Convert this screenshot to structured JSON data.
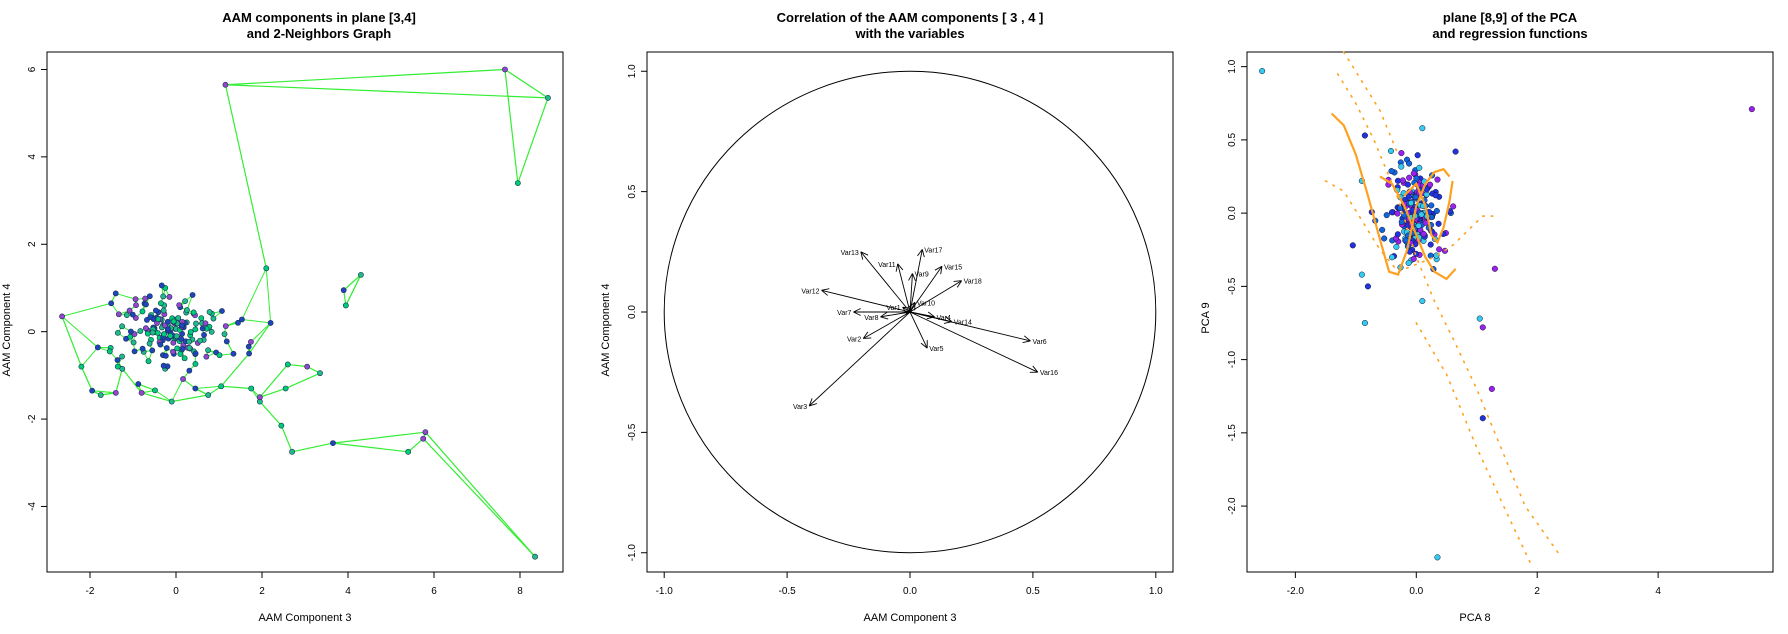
{
  "chart_data": [
    {
      "type": "scatter",
      "title_lines": [
        "AAM components in plane [3,4]",
        "and 2-Neighbors Graph"
      ],
      "xlabel": "AAM Component 3",
      "ylabel": "AAM Component 4",
      "xlim": [
        -3.0,
        9.0
      ],
      "ylim": [
        -5.5,
        6.4
      ],
      "xticks": [
        -2,
        0,
        2,
        4,
        6,
        8
      ],
      "yticks": [
        -4,
        -2,
        0,
        2,
        4,
        6
      ],
      "edge_color": "#33ee33",
      "point_colors": [
        "#00cc77",
        "#2244bb",
        "#9944cc",
        "#22bb88"
      ],
      "outliers": [
        [
          1.15,
          5.65
        ],
        [
          7.65,
          6.0
        ],
        [
          8.65,
          5.35
        ],
        [
          7.95,
          3.4
        ],
        [
          4.3,
          1.3
        ],
        [
          3.9,
          0.95
        ],
        [
          3.95,
          0.6
        ],
        [
          2.1,
          1.45
        ],
        [
          8.35,
          -5.15
        ],
        [
          5.8,
          -2.3
        ],
        [
          5.75,
          -2.45
        ],
        [
          5.4,
          -2.75
        ],
        [
          3.65,
          -2.55
        ],
        [
          2.7,
          -2.75
        ],
        [
          2.45,
          -2.15
        ],
        [
          1.95,
          -1.6
        ],
        [
          1.95,
          -1.5
        ],
        [
          2.6,
          -0.75
        ],
        [
          3.05,
          -0.8
        ],
        [
          3.35,
          -0.95
        ],
        [
          2.55,
          -1.3
        ],
        [
          -2.65,
          0.35
        ],
        [
          -2.2,
          -0.8
        ],
        [
          -1.95,
          -1.35
        ],
        [
          -1.75,
          -1.45
        ],
        [
          -1.4,
          -1.4
        ],
        [
          -1.25,
          -0.85
        ],
        [
          -0.8,
          -1.4
        ],
        [
          -0.1,
          -1.6
        ],
        [
          0.75,
          -1.45
        ],
        [
          0.45,
          -1.3
        ],
        [
          1.75,
          -1.3
        ],
        [
          1.05,
          -1.25
        ],
        [
          1.7,
          -0.5
        ],
        [
          2.2,
          0.2
        ]
      ],
      "edges": [
        [
          0,
          1
        ],
        [
          0,
          2
        ],
        [
          1,
          2
        ],
        [
          1,
          3
        ],
        [
          2,
          3
        ],
        [
          4,
          5
        ],
        [
          4,
          6
        ],
        [
          5,
          6
        ],
        [
          7,
          0
        ],
        [
          8,
          9
        ],
        [
          8,
          10
        ],
        [
          9,
          10
        ],
        [
          10,
          11
        ],
        [
          9,
          12
        ],
        [
          11,
          12
        ],
        [
          12,
          13
        ],
        [
          13,
          14
        ],
        [
          14,
          15
        ],
        [
          15,
          16
        ],
        [
          16,
          17
        ],
        [
          17,
          18
        ],
        [
          18,
          19
        ],
        [
          19,
          20
        ],
        [
          20,
          16
        ],
        [
          21,
          22
        ],
        [
          22,
          23
        ],
        [
          23,
          24
        ],
        [
          24,
          25
        ],
        [
          25,
          26
        ],
        [
          26,
          27
        ],
        [
          27,
          28
        ],
        [
          28,
          29
        ],
        [
          29,
          30
        ],
        [
          31,
          32
        ],
        [
          32,
          33
        ],
        [
          33,
          34
        ]
      ],
      "cluster": {
        "center": [
          -0.1,
          0.05
        ],
        "spread": [
          0.65,
          0.45
        ],
        "count": 180
      }
    },
    {
      "type": "correlation_circle",
      "title_lines": [
        "Correlation of the AAM components [ 3 , 4 ]",
        "with the variables"
      ],
      "xlabel": "AAM Component 3",
      "ylabel": "AAM Component 4",
      "xlim": [
        -1.07,
        1.07
      ],
      "ylim": [
        -1.08,
        1.08
      ],
      "xticks": [
        -1.0,
        -0.5,
        0.0,
        0.5,
        1.0
      ],
      "yticks": [
        -1.0,
        -0.5,
        0.0,
        0.5,
        1.0
      ],
      "arrows": [
        {
          "name": "Var13",
          "x": -0.2,
          "y": 0.25
        },
        {
          "name": "Var17",
          "x": 0.05,
          "y": 0.26
        },
        {
          "name": "Var11",
          "x": -0.05,
          "y": 0.2
        },
        {
          "name": "Var15",
          "x": 0.13,
          "y": 0.19
        },
        {
          "name": "Var9",
          "x": 0.01,
          "y": 0.16
        },
        {
          "name": "Var18",
          "x": 0.21,
          "y": 0.13
        },
        {
          "name": "Var12",
          "x": -0.36,
          "y": 0.09
        },
        {
          "name": "Var10",
          "x": 0.02,
          "y": 0.04
        },
        {
          "name": "Var7",
          "x": -0.23,
          "y": 0.0
        },
        {
          "name": "Var8",
          "x": -0.12,
          "y": -0.02
        },
        {
          "name": "Var4",
          "x": 0.1,
          "y": -0.02
        },
        {
          "name": "Var14",
          "x": 0.17,
          "y": -0.04
        },
        {
          "name": "Var2",
          "x": -0.19,
          "y": -0.11
        },
        {
          "name": "Var5",
          "x": 0.07,
          "y": -0.15
        },
        {
          "name": "Var6",
          "x": 0.49,
          "y": -0.12
        },
        {
          "name": "Var16",
          "x": 0.52,
          "y": -0.25
        },
        {
          "name": "Var3",
          "x": -0.41,
          "y": -0.39
        },
        {
          "name": "Var1",
          "x": -0.03,
          "y": 0.02
        }
      ]
    },
    {
      "type": "scatter",
      "title_lines": [
        "plane [8,9] of the PCA",
        "and regression functions"
      ],
      "xlabel": "PCA 8",
      "ylabel": "PCA 9",
      "xlim": [
        -2.8,
        5.9
      ],
      "ylim": [
        -2.45,
        1.1
      ],
      "xticks": [
        -2,
        0,
        2,
        4
      ],
      "yticks": [
        -2.0,
        -1.5,
        -1.0,
        -0.5,
        0.0,
        0.5,
        1.0
      ],
      "regression_color": "#ffa020",
      "point_colors": [
        "#2233dd",
        "#33ccee",
        "#9922ee",
        "#1166dd"
      ],
      "outliers": [
        {
          "x": -2.55,
          "y": 0.97,
          "c": 1
        },
        {
          "x": 5.55,
          "y": 0.71,
          "c": 2
        },
        {
          "x": 0.35,
          "y": -2.35,
          "c": 1
        },
        {
          "x": 1.1,
          "y": -1.4,
          "c": 0
        },
        {
          "x": 1.25,
          "y": -1.2,
          "c": 2
        },
        {
          "x": 1.1,
          "y": -0.78,
          "c": 2
        },
        {
          "x": 1.05,
          "y": -0.72,
          "c": 1
        },
        {
          "x": 1.3,
          "y": -0.38,
          "c": 2
        },
        {
          "x": -0.85,
          "y": -0.75,
          "c": 1
        },
        {
          "x": -0.8,
          "y": -0.5,
          "c": 0
        },
        {
          "x": -0.9,
          "y": -0.42,
          "c": 1
        },
        {
          "x": -1.05,
          "y": -0.22,
          "c": 0
        },
        {
          "x": -0.85,
          "y": 0.53,
          "c": 0
        },
        {
          "x": 0.1,
          "y": -0.6,
          "c": 1
        },
        {
          "x": 0.65,
          "y": 0.42,
          "c": 0
        },
        {
          "x": -0.9,
          "y": 0.22,
          "c": 1
        },
        {
          "x": 0.1,
          "y": 0.58,
          "c": 1
        }
      ],
      "cluster": {
        "center": [
          0.0,
          -0.02
        ],
        "spread": [
          0.22,
          0.17
        ],
        "count": 210
      },
      "regression_solid": [
        [
          [
            -1.4,
            0.68
          ],
          [
            -1.2,
            0.6
          ],
          [
            -1.0,
            0.4
          ],
          [
            -0.8,
            0.12
          ],
          [
            -0.6,
            -0.18
          ],
          [
            -0.45,
            -0.4
          ],
          [
            -0.3,
            -0.42
          ],
          [
            -0.15,
            -0.25
          ],
          [
            0.0,
            0.05
          ],
          [
            0.15,
            0.2
          ],
          [
            0.3,
            0.28
          ],
          [
            0.45,
            0.3
          ],
          [
            0.55,
            0.25
          ]
        ],
        [
          [
            -0.6,
            0.25
          ],
          [
            -0.4,
            0.2
          ],
          [
            -0.2,
            0.05
          ],
          [
            0.0,
            -0.15
          ],
          [
            0.15,
            -0.3
          ],
          [
            0.3,
            -0.4
          ],
          [
            0.5,
            -0.45
          ],
          [
            0.65,
            -0.38
          ]
        ],
        [
          [
            -0.2,
            0.12
          ],
          [
            0.0,
            0.2
          ],
          [
            0.15,
            0.05
          ],
          [
            0.25,
            -0.15
          ],
          [
            0.35,
            -0.2
          ],
          [
            0.45,
            -0.1
          ],
          [
            0.55,
            0.08
          ],
          [
            0.6,
            0.22
          ]
        ]
      ],
      "regression_dotted": [
        [
          [
            -1.5,
            0.22
          ],
          [
            -1.2,
            0.15
          ],
          [
            -0.9,
            -0.05
          ],
          [
            -0.6,
            -0.25
          ],
          [
            -0.3,
            -0.4
          ],
          [
            0.0,
            -0.35
          ],
          [
            0.3,
            -0.3
          ],
          [
            0.6,
            -0.22
          ],
          [
            0.9,
            -0.1
          ],
          [
            1.1,
            -0.02
          ],
          [
            1.35,
            -0.02
          ]
        ],
        [
          [
            -1.3,
            0.95
          ],
          [
            -1.0,
            0.75
          ],
          [
            -0.7,
            0.5
          ],
          [
            -0.3,
            0.1
          ],
          [
            0.0,
            -0.3
          ],
          [
            0.3,
            -0.6
          ],
          [
            0.6,
            -0.85
          ],
          [
            1.0,
            -1.2
          ],
          [
            1.4,
            -1.6
          ],
          [
            1.8,
            -2.0
          ],
          [
            2.4,
            -2.35
          ]
        ],
        [
          [
            -1.2,
            1.1
          ],
          [
            -0.9,
            0.9
          ],
          [
            -0.6,
            0.7
          ],
          [
            -0.3,
            0.4
          ]
        ],
        [
          [
            0.0,
            -0.75
          ],
          [
            0.5,
            -1.1
          ],
          [
            1.0,
            -1.6
          ],
          [
            1.5,
            -2.05
          ],
          [
            1.9,
            -2.4
          ]
        ]
      ]
    }
  ]
}
